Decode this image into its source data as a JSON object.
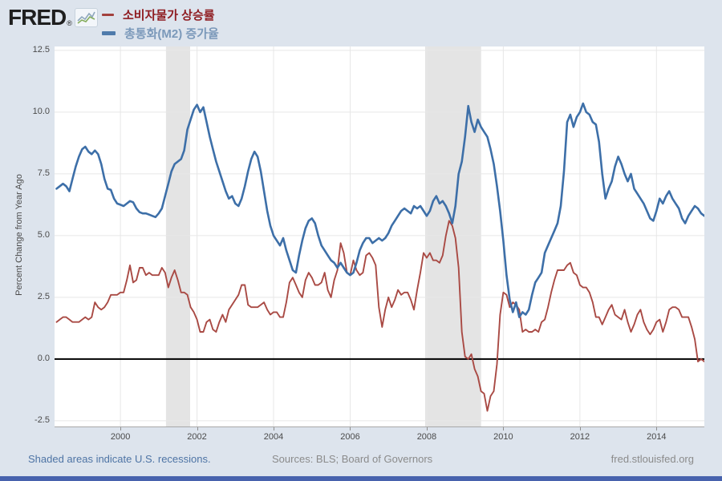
{
  "header": {
    "logo_text": "FRED",
    "logo_registered": "®",
    "legend": [
      {
        "label": "소비자물가 상승률",
        "swatch_color": "#a2413d",
        "text_color": "#8f1d22"
      },
      {
        "label": "총통화(M2) 증가율",
        "swatch_color": "#4f7bab",
        "text_color": "#7b99ba"
      }
    ]
  },
  "footer": {
    "left": "Shaded areas indicate U.S. recessions.",
    "center": "Sources: BLS; Board of Governors",
    "right": "fred.stlouisfed.org"
  },
  "colors": {
    "page_background": "#dde4ed",
    "plot_background": "#ffffff",
    "bottom_bar": "#4762ad",
    "zero_line": "#000000"
  },
  "chart_data": {
    "type": "line",
    "title": "",
    "xlabel": "",
    "ylabel": "Percent Change from Year Ago",
    "grid": true,
    "legend_position": "top-left",
    "xlim": [
      1998.28,
      2015.25
    ],
    "ylim": [
      -2.73,
      12.66
    ],
    "yticks": [
      -2.5,
      0.0,
      2.5,
      5.0,
      7.5,
      10.0,
      12.5
    ],
    "ytick_labels": [
      "-2.5",
      "0.0",
      "2.5",
      "5.0",
      "7.5",
      "10.0",
      "12.5"
    ],
    "xticks": [
      2000,
      2002,
      2004,
      2006,
      2008,
      2010,
      2012,
      2014
    ],
    "grid_color": "#e7e7e7",
    "band_color": "#e4e4e4",
    "recession_bands": [
      [
        2001.19,
        2001.82
      ],
      [
        2007.96,
        2009.42
      ]
    ],
    "x_start": 1998.3333,
    "x_step": 0.0833333,
    "series": [
      {
        "name": "소비자물가 상승률",
        "color": "#a94a44",
        "width": 1.9,
        "values": [
          1.5,
          1.6,
          1.7,
          1.7,
          1.6,
          1.5,
          1.5,
          1.5,
          1.6,
          1.7,
          1.6,
          1.7,
          2.3,
          2.1,
          2.0,
          2.1,
          2.3,
          2.6,
          2.6,
          2.6,
          2.7,
          2.7,
          3.2,
          3.8,
          3.1,
          3.2,
          3.7,
          3.7,
          3.4,
          3.5,
          3.4,
          3.4,
          3.4,
          3.7,
          3.5,
          2.9,
          3.3,
          3.6,
          3.2,
          2.7,
          2.7,
          2.6,
          2.1,
          1.9,
          1.6,
          1.1,
          1.1,
          1.5,
          1.6,
          1.2,
          1.1,
          1.5,
          1.8,
          1.5,
          2.0,
          2.2,
          2.4,
          2.6,
          3.0,
          3.0,
          2.2,
          2.1,
          2.1,
          2.1,
          2.2,
          2.3,
          2.0,
          1.8,
          1.9,
          1.9,
          1.7,
          1.7,
          2.3,
          3.1,
          3.3,
          3.0,
          2.7,
          2.5,
          3.2,
          3.5,
          3.3,
          3.0,
          3.0,
          3.1,
          3.5,
          2.8,
          2.5,
          3.2,
          3.6,
          4.7,
          4.3,
          3.5,
          3.4,
          4.0,
          3.6,
          3.4,
          3.5,
          4.2,
          4.3,
          4.1,
          3.8,
          2.1,
          1.3,
          2.0,
          2.5,
          2.1,
          2.4,
          2.8,
          2.6,
          2.7,
          2.7,
          2.4,
          2.0,
          2.8,
          3.5,
          4.3,
          4.1,
          4.3,
          4.0,
          4.0,
          3.9,
          4.2,
          5.0,
          5.6,
          5.4,
          4.9,
          3.7,
          1.1,
          0.1,
          0.0,
          0.2,
          -0.4,
          -0.7,
          -1.3,
          -1.4,
          -2.1,
          -1.5,
          -1.3,
          -0.2,
          1.8,
          2.7,
          2.6,
          2.1,
          2.3,
          2.2,
          2.0,
          1.1,
          1.2,
          1.1,
          1.1,
          1.2,
          1.1,
          1.5,
          1.6,
          2.1,
          2.7,
          3.2,
          3.6,
          3.6,
          3.6,
          3.8,
          3.9,
          3.5,
          3.4,
          3.0,
          2.9,
          2.9,
          2.7,
          2.3,
          1.7,
          1.7,
          1.4,
          1.7,
          2.0,
          2.2,
          1.8,
          1.7,
          1.6,
          2.0,
          1.5,
          1.1,
          1.4,
          1.8,
          2.0,
          1.5,
          1.2,
          1.0,
          1.2,
          1.5,
          1.6,
          1.1,
          1.5,
          2.0,
          2.1,
          2.1,
          2.0,
          1.7,
          1.7,
          1.7,
          1.3,
          0.8,
          -0.1,
          0.0,
          -0.1
        ]
      },
      {
        "name": "총통화(M2) 증가율",
        "color": "#3d6fa8",
        "width": 2.6,
        "values": [
          6.9,
          7.0,
          7.1,
          7.0,
          6.8,
          7.3,
          7.8,
          8.2,
          8.5,
          8.6,
          8.4,
          8.3,
          8.45,
          8.3,
          7.9,
          7.3,
          6.9,
          6.85,
          6.5,
          6.3,
          6.25,
          6.2,
          6.3,
          6.4,
          6.35,
          6.1,
          5.95,
          5.9,
          5.9,
          5.85,
          5.8,
          5.75,
          5.9,
          6.1,
          6.6,
          7.1,
          7.6,
          7.9,
          8.0,
          8.1,
          8.45,
          9.3,
          9.7,
          10.1,
          10.3,
          10.0,
          10.2,
          9.6,
          9.0,
          8.5,
          8.0,
          7.6,
          7.2,
          6.8,
          6.5,
          6.6,
          6.3,
          6.2,
          6.5,
          7.0,
          7.6,
          8.1,
          8.4,
          8.2,
          7.6,
          6.8,
          6.0,
          5.4,
          5.0,
          4.8,
          4.6,
          4.9,
          4.4,
          4.0,
          3.6,
          3.5,
          4.2,
          4.8,
          5.3,
          5.6,
          5.7,
          5.5,
          5.0,
          4.6,
          4.4,
          4.2,
          4.0,
          3.9,
          3.7,
          3.9,
          3.7,
          3.5,
          3.4,
          3.5,
          3.9,
          4.4,
          4.7,
          4.9,
          4.9,
          4.7,
          4.8,
          4.9,
          4.8,
          4.9,
          5.1,
          5.4,
          5.6,
          5.8,
          6.0,
          6.1,
          6.0,
          5.9,
          6.2,
          6.1,
          6.2,
          6.0,
          5.8,
          6.0,
          6.4,
          6.6,
          6.3,
          6.4,
          6.2,
          5.9,
          5.5,
          6.2,
          7.5,
          8.0,
          9.0,
          10.25,
          9.6,
          9.2,
          9.7,
          9.4,
          9.2,
          9.0,
          8.5,
          7.9,
          7.0,
          6.0,
          4.8,
          3.4,
          2.4,
          1.9,
          2.3,
          1.7,
          1.9,
          1.8,
          2.0,
          2.6,
          3.1,
          3.3,
          3.5,
          4.3,
          4.6,
          4.9,
          5.2,
          5.5,
          6.2,
          7.6,
          9.6,
          9.9,
          9.4,
          9.8,
          10.0,
          10.35,
          10.0,
          9.9,
          9.6,
          9.5,
          8.8,
          7.5,
          6.5,
          6.9,
          7.2,
          7.8,
          8.2,
          7.9,
          7.5,
          7.2,
          7.5,
          6.9,
          6.7,
          6.5,
          6.3,
          6.0,
          5.7,
          5.6,
          6.0,
          6.5,
          6.3,
          6.6,
          6.8,
          6.5,
          6.3,
          6.1,
          5.7,
          5.5,
          5.8,
          6.0,
          6.2,
          6.1,
          5.9,
          5.8
        ]
      }
    ]
  }
}
